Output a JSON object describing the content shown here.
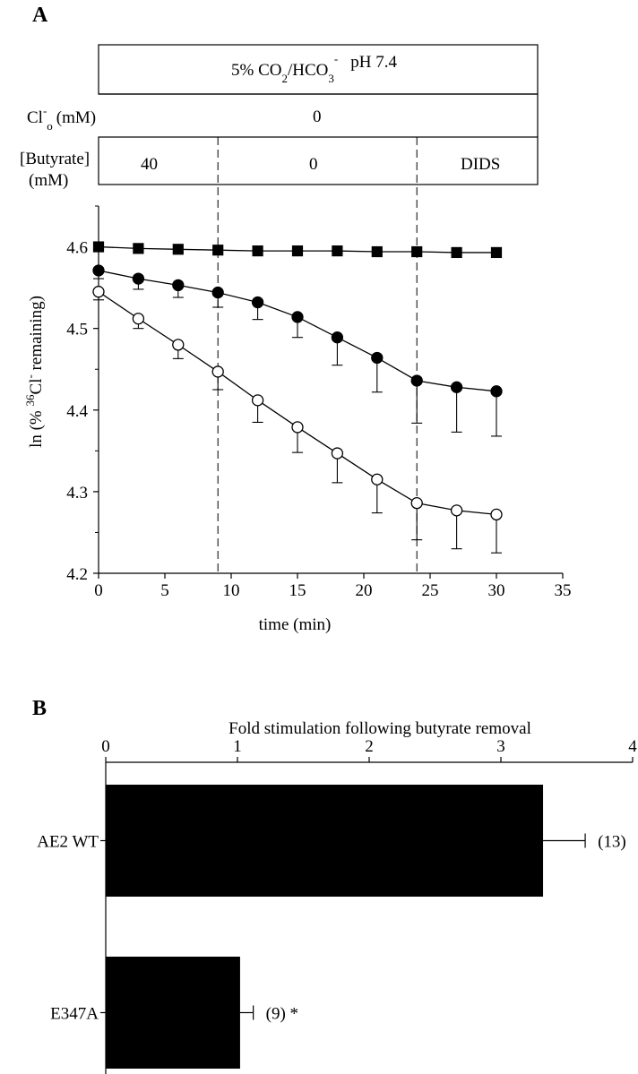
{
  "panel_a": {
    "letter": "A",
    "condition": {
      "label_main": "5% CO",
      "label_sub1": "2",
      "label_mid": "/HCO",
      "label_sub2": "3",
      "label_sup": "-",
      "label_ph": "pH 7.4"
    },
    "chloride": {
      "label_main": "Cl",
      "label_sup": "-",
      "label_sub": "o",
      "label_unit": "(mM)",
      "value": "0"
    },
    "butyrate": {
      "label_line1": "[Butyrate]",
      "label_line2": "(mM)",
      "phase1": "40",
      "phase2": "0",
      "phase3": "DIDS"
    },
    "ylabel": {
      "pre": "ln (% ",
      "sup1": "36",
      "mid": "Cl",
      "sup2": "-",
      "post": " remaining)"
    }
  },
  "panel_b": {
    "letter": "B"
  },
  "chart_data": [
    {
      "type": "line",
      "panel": "A",
      "xlabel": "time (min)",
      "ylabel": "ln (% 36Cl- remaining)",
      "xlim": [
        0,
        35
      ],
      "ylim": [
        4.2,
        4.65
      ],
      "xticks": [
        "0",
        "5",
        "10",
        "15",
        "20",
        "25",
        "30",
        "35"
      ],
      "yticks": [
        "4.2",
        "4.3",
        "4.4",
        "4.5",
        "4.6"
      ],
      "phase_boundaries": [
        9,
        24
      ],
      "x": [
        0,
        3,
        6,
        9,
        12,
        15,
        18,
        21,
        24,
        27,
        30
      ],
      "series": [
        {
          "name": "square-filled",
          "marker": "square",
          "fill": "#000000",
          "values": [
            4.6,
            4.598,
            4.597,
            4.596,
            4.595,
            4.595,
            4.595,
            4.594,
            4.594,
            4.593,
            4.593
          ],
          "errors": [
            0,
            0,
            0,
            0,
            0,
            0,
            0,
            0,
            0,
            0,
            0
          ]
        },
        {
          "name": "circle-filled",
          "marker": "circle",
          "fill": "#000000",
          "values": [
            4.571,
            4.561,
            4.553,
            4.544,
            4.532,
            4.514,
            4.489,
            4.464,
            4.436,
            4.428,
            4.423
          ],
          "errors": [
            0.01,
            0.013,
            0.015,
            0.018,
            0.021,
            0.025,
            0.034,
            0.042,
            0.052,
            0.055,
            0.055
          ]
        },
        {
          "name": "circle-open",
          "marker": "circle",
          "fill": "#ffffff",
          "values": [
            4.545,
            4.512,
            4.48,
            4.447,
            4.412,
            4.379,
            4.347,
            4.315,
            4.286,
            4.277,
            4.272
          ],
          "errors": [
            0.01,
            0.012,
            0.017,
            0.022,
            0.027,
            0.031,
            0.036,
            0.041,
            0.045,
            0.047,
            0.047
          ]
        }
      ]
    },
    {
      "type": "bar",
      "orientation": "horizontal",
      "panel": "B",
      "title": "Fold stimulation following butyrate removal",
      "xlim": [
        0,
        4
      ],
      "xticks": [
        "0",
        "1",
        "2",
        "3",
        "4"
      ],
      "categories": [
        "AE2 WT",
        "E347A"
      ],
      "values": [
        3.32,
        1.02
      ],
      "errors": [
        0.32,
        0.1
      ],
      "n_labels": [
        "(13)",
        "(9)"
      ],
      "significance": [
        "",
        "*"
      ]
    }
  ]
}
